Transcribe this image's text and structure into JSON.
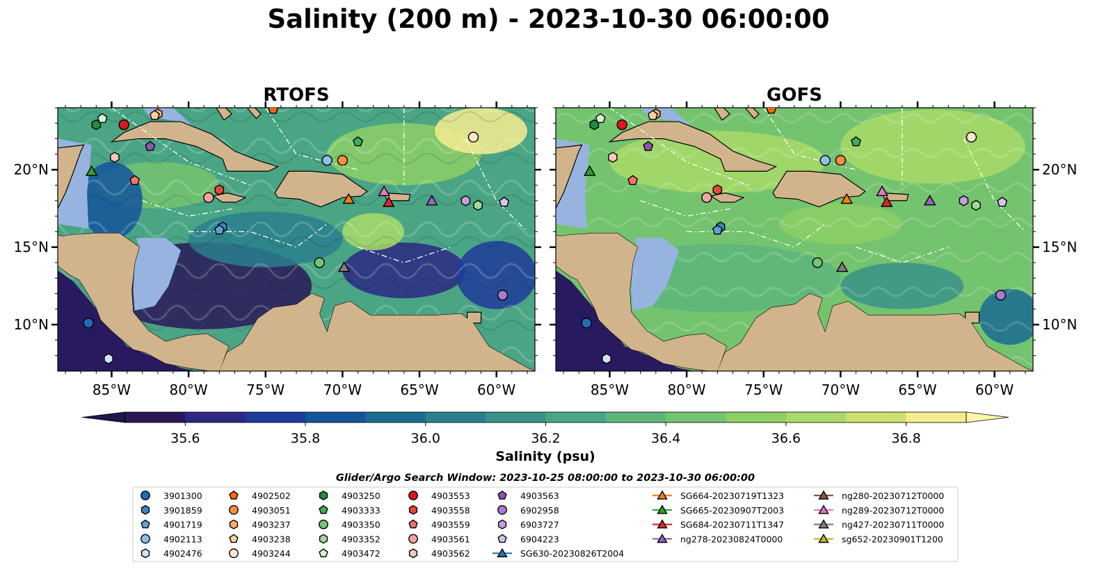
{
  "title": "Salinity (200 m) - 2023-10-30 06:00:00",
  "chart_data": {
    "type": "heatmap",
    "variable": "Salinity",
    "depth_m": 200,
    "panels": [
      {
        "title": "RTOFS",
        "model": "RTOFS"
      },
      {
        "title": "GOFS",
        "model": "GOFS"
      }
    ],
    "lon_range": [
      -88.5,
      -57.5
    ],
    "lat_range": [
      7,
      24
    ],
    "x_ticks": [
      {
        "value": -85,
        "label": "85°W"
      },
      {
        "value": -80,
        "label": "80°W"
      },
      {
        "value": -75,
        "label": "75°W"
      },
      {
        "value": -70,
        "label": "70°W"
      },
      {
        "value": -65,
        "label": "65°W"
      },
      {
        "value": -60,
        "label": "60°W"
      }
    ],
    "y_ticks": [
      {
        "value": 10,
        "label": "10°N"
      },
      {
        "value": 15,
        "label": "15°N"
      },
      {
        "value": 20,
        "label": "20°N"
      }
    ],
    "colorbar": {
      "label": "Salinity (psu)",
      "range": [
        35.5,
        36.9
      ],
      "step": 0.1,
      "extend": "both",
      "ticks": [
        {
          "value": 35.6,
          "label": "35.6"
        },
        {
          "value": 35.8,
          "label": "35.8"
        },
        {
          "value": 36.0,
          "label": "36.0"
        },
        {
          "value": 36.2,
          "label": "36.2"
        },
        {
          "value": 36.4,
          "label": "36.4"
        },
        {
          "value": 36.6,
          "label": "36.6"
        },
        {
          "value": 36.8,
          "label": "36.8"
        }
      ],
      "colors": [
        "#2a1858",
        "#2c2883",
        "#1f3b9a",
        "#13559b",
        "#1a6b93",
        "#2a7f8d",
        "#3a938a",
        "#4aa584",
        "#5cb67b",
        "#74c36f",
        "#8dcf66",
        "#a9da68",
        "#cce06f",
        "#f6ec8e"
      ],
      "under_color": "#24144c",
      "over_color": "#fbf6a8"
    },
    "map_colors": {
      "land": "#d2b48c",
      "shelf": "#97b4e0",
      "deep_ocean": "#291a5f"
    },
    "search_window": "Glider/Argo Search Window: 2023-10-25 08:00:00 to 2023-10-30 06:00:00",
    "argo_floats": [
      {
        "id": "3901300",
        "marker": "circle",
        "color": "#1f6cb4",
        "lon": -86.5,
        "lat": 10.1
      },
      {
        "id": "3901859",
        "marker": "hexagon",
        "color": "#3a86c4",
        "lon": -77.8,
        "lat": 16.3
      },
      {
        "id": "4901719",
        "marker": "pentagon",
        "color": "#5ea0d8",
        "lon": -78.0,
        "lat": 16.1
      },
      {
        "id": "4902113",
        "marker": "circle",
        "color": "#8ec0ea",
        "lon": -71.0,
        "lat": 20.6
      },
      {
        "id": "4902476",
        "marker": "hexagon",
        "color": "#cfe4f6",
        "lon": -85.2,
        "lat": 7.8
      },
      {
        "id": "4902502",
        "marker": "pentagon",
        "color": "#f16913",
        "lon": -74.5,
        "lat": 23.9
      },
      {
        "id": "4903051",
        "marker": "circle",
        "color": "#fd8d3c",
        "lon": -70.0,
        "lat": 20.6
      },
      {
        "id": "4903237",
        "marker": "hexagon",
        "color": "#fdae6b",
        "lon": -82.0,
        "lat": 23.6
      },
      {
        "id": "4903238",
        "marker": "pentagon",
        "color": "#fdd0a2",
        "lon": -82.2,
        "lat": 23.5
      },
      {
        "id": "4903244",
        "marker": "circle",
        "color": "#fde5cf",
        "lon": -61.5,
        "lat": 22.1
      },
      {
        "id": "4903250",
        "marker": "hexagon",
        "color": "#238b45",
        "lon": -86.0,
        "lat": 22.9
      },
      {
        "id": "4903333",
        "marker": "pentagon",
        "color": "#41ab5d",
        "lon": -69.0,
        "lat": 21.8
      },
      {
        "id": "4903350",
        "marker": "circle",
        "color": "#74c476",
        "lon": -71.5,
        "lat": 14.0
      },
      {
        "id": "4903352",
        "marker": "hexagon",
        "color": "#a1d99b",
        "lon": -61.2,
        "lat": 17.7
      },
      {
        "id": "4903472",
        "marker": "pentagon",
        "color": "#d4f5cc",
        "lon": -85.6,
        "lat": 23.3
      },
      {
        "id": "4903553",
        "marker": "circle",
        "color": "#d7191c",
        "lon": -84.2,
        "lat": 22.9
      },
      {
        "id": "4903558",
        "marker": "hexagon",
        "color": "#e34a33",
        "lon": -78.0,
        "lat": 18.7
      },
      {
        "id": "4903559",
        "marker": "pentagon",
        "color": "#f0746c",
        "lon": -83.5,
        "lat": 19.3
      },
      {
        "id": "4903561",
        "marker": "circle",
        "color": "#f4a3a0",
        "lon": -78.7,
        "lat": 18.2
      },
      {
        "id": "4903562",
        "marker": "hexagon",
        "color": "#fcc5c0",
        "lon": -84.8,
        "lat": 20.8
      },
      {
        "id": "4903563",
        "marker": "pentagon",
        "color": "#8c54b4",
        "lon": -82.5,
        "lat": 21.5
      },
      {
        "id": "6902958",
        "marker": "circle",
        "color": "#a77cc8",
        "lon": -59.6,
        "lat": 11.9
      },
      {
        "id": "6903727",
        "marker": "hexagon",
        "color": "#c1a0dc",
        "lon": -62.0,
        "lat": 18.0
      },
      {
        "id": "6904223",
        "marker": "pentagon",
        "color": "#d9c2ee",
        "lon": -59.5,
        "lat": 17.9
      }
    ],
    "gliders": [
      {
        "id": "SG630-20230826T2004",
        "marker": "triangle",
        "color": "#1f77b4",
        "lon": null,
        "lat": null
      },
      {
        "id": "SG664-20230719T1323",
        "marker": "triangle",
        "color": "#ff7f0e",
        "lon": -69.6,
        "lat": 18.1
      },
      {
        "id": "SG665-20230907T2003",
        "marker": "triangle",
        "color": "#2ca02c",
        "lon": -86.3,
        "lat": 19.9
      },
      {
        "id": "SG684-20230711T1347",
        "marker": "triangle",
        "color": "#d62728",
        "lon": -67.0,
        "lat": 17.9
      },
      {
        "id": "ng278-20230824T0000",
        "marker": "triangle",
        "color": "#9467bd",
        "lon": -64.2,
        "lat": 18.0
      },
      {
        "id": "ng280-20230712T0000",
        "marker": "triangle",
        "color": "#8c564b",
        "lon": null,
        "lat": null
      },
      {
        "id": "ng289-20230712T0000",
        "marker": "triangle",
        "color": "#e377c2",
        "lon": -67.3,
        "lat": 18.6
      },
      {
        "id": "ng427-20230711T0000",
        "marker": "triangle",
        "color": "#7f7f7f",
        "lon": -69.9,
        "lat": 13.7
      },
      {
        "id": "sg652-20230901T1200",
        "marker": "triangle",
        "color": "#bcbd22",
        "lon": null,
        "lat": null
      }
    ]
  }
}
